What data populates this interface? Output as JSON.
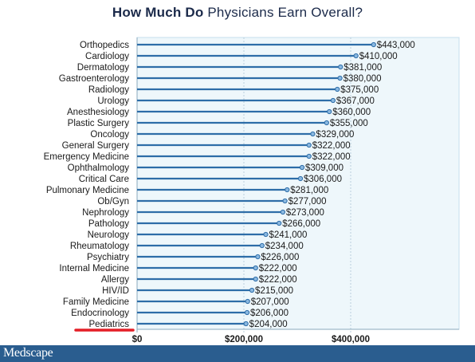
{
  "title": {
    "bold_part": "How Much Do",
    "rest": "Physicians Earn Overall?"
  },
  "footer": {
    "logo_text": "Medscape"
  },
  "colors": {
    "bar_line": "#2d6da8",
    "dot": "#8ab8e0",
    "plot_bg": "#eef7fb",
    "plot_border": "#c5dfee",
    "grid": "#b9cfdc",
    "underline": "#e41e26",
    "footer_bg": "#2a5d8f"
  },
  "highlight": {
    "category": "Pediatrics",
    "style": "red underline"
  },
  "chart_data": {
    "type": "bar",
    "orientation": "horizontal",
    "title": "How Much Do Physicians Earn Overall?",
    "categories": [
      "Orthopedics",
      "Cardiology",
      "Dermatology",
      "Gastroenterology",
      "Radiology",
      "Urology",
      "Anesthesiology",
      "Plastic Surgery",
      "Oncology",
      "General Surgery",
      "Emergency Medicine",
      "Ophthalmology",
      "Critical Care",
      "Pulmonary Medicine",
      "Ob/Gyn",
      "Nephrology",
      "Pathology",
      "Neurology",
      "Rheumatology",
      "Psychiatry",
      "Internal Medicine",
      "Allergy",
      "HIV/ID",
      "Family Medicine",
      "Endocrinology",
      "Pediatrics"
    ],
    "values": [
      443000,
      410000,
      381000,
      380000,
      375000,
      367000,
      360000,
      355000,
      329000,
      322000,
      322000,
      309000,
      306000,
      281000,
      277000,
      273000,
      266000,
      241000,
      234000,
      226000,
      222000,
      222000,
      215000,
      207000,
      206000,
      204000
    ],
    "value_labels": [
      "$443,000",
      "$410,000",
      "$381,000",
      "$380,000",
      "$375,000",
      "$367,000",
      "$360,000",
      "$355,000",
      "$329,000",
      "$322,000",
      "$322,000",
      "$309,000",
      "$306,000",
      "$281,000",
      "$277,000",
      "$273,000",
      "$266,000",
      "$241,000",
      "$234,000",
      "$226,000",
      "$222,000",
      "$222,000",
      "$215,000",
      "$207,000",
      "$206,000",
      "$204,000"
    ],
    "x_ticks": [
      0,
      200000,
      400000
    ],
    "x_tick_labels": [
      "$0",
      "$200,000",
      "$400,000"
    ],
    "xlim": [
      0,
      600000
    ],
    "grid": true
  }
}
